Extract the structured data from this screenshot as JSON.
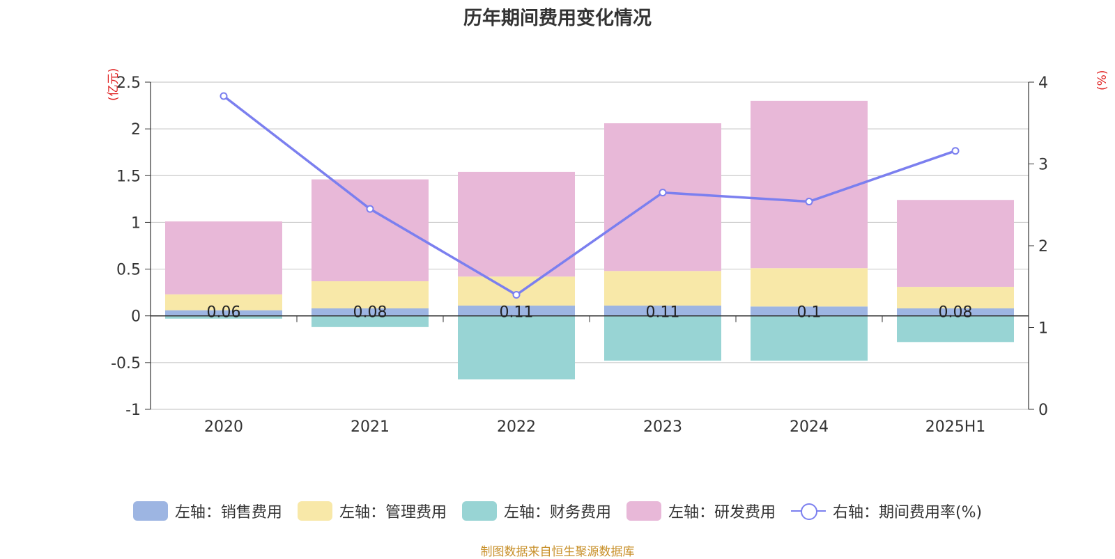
{
  "chart_data": {
    "type": "bar",
    "title": "历年期间费用变化情况",
    "y_left_unit": "(亿元)",
    "y_right_unit": "(%)",
    "categories": [
      "2020",
      "2021",
      "2022",
      "2023",
      "2024",
      "2025H1"
    ],
    "y_left": {
      "min": -1,
      "max": 2.5,
      "ticks": [
        "-1",
        "-0.5",
        "0",
        "0.5",
        "1",
        "1.5",
        "2",
        "2.5"
      ]
    },
    "y_right": {
      "min": 0,
      "max": 4,
      "ticks": [
        "0",
        "1",
        "2",
        "3",
        "4"
      ]
    },
    "grid": true,
    "legend_position": "bottom",
    "series": [
      {
        "name": "左轴：销售费用",
        "type": "bar",
        "axis": "left",
        "color": "#9db5e2",
        "values": [
          0.06,
          0.08,
          0.11,
          0.11,
          0.1,
          0.08
        ],
        "labels": [
          "0.06",
          "0.08",
          "0.11",
          "0.11",
          "0.1",
          "0.08"
        ]
      },
      {
        "name": "左轴：管理费用",
        "type": "bar",
        "axis": "left",
        "color": "#f8e8a8",
        "values": [
          0.17,
          0.29,
          0.31,
          0.37,
          0.41,
          0.23
        ]
      },
      {
        "name": "左轴：财务费用",
        "type": "bar",
        "axis": "left",
        "color": "#98d4d4",
        "values": [
          -0.03,
          -0.12,
          -0.68,
          -0.48,
          -0.48,
          -0.28
        ]
      },
      {
        "name": "左轴：研发费用",
        "type": "bar",
        "axis": "left",
        "color": "#e8b8d8",
        "values": [
          0.78,
          1.09,
          1.12,
          1.58,
          1.79,
          0.93
        ]
      },
      {
        "name": "右轴：期间费用率(%)",
        "type": "line",
        "axis": "right",
        "color": "#7b7fef",
        "values": [
          3.83,
          2.45,
          1.4,
          2.65,
          2.54,
          3.16
        ]
      }
    ],
    "source": "制图数据来自恒生聚源数据库"
  }
}
